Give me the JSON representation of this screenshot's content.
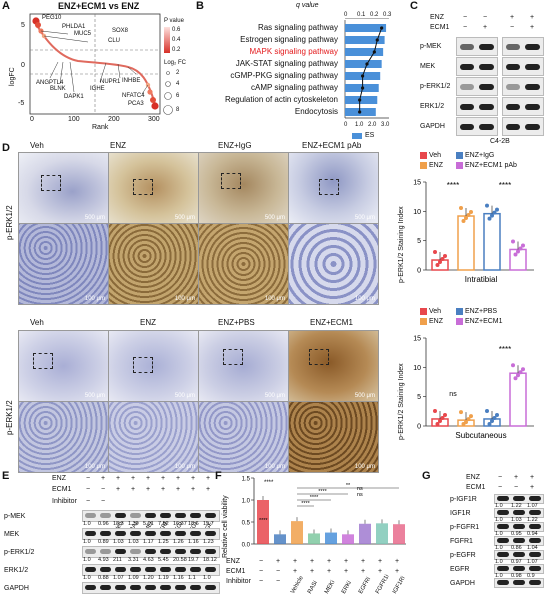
{
  "panels": {
    "A": "A",
    "B": "B",
    "C": "C",
    "D": "D",
    "E": "E",
    "F": "F",
    "G": "G"
  },
  "panelA": {
    "title": "ENZ+ECM1 vs ENZ",
    "ylabel": "logFC",
    "xlabel": "Rank",
    "legend_pvalue_title": "P value",
    "legend_pvalue_ticks": [
      "0.6",
      "0.4",
      "0.2"
    ],
    "legend_size_title": "Log₂ FC",
    "legend_size_ticks": [
      "2",
      "4",
      "6",
      "8"
    ],
    "genes_top": [
      "PEG10",
      "PHLDA1",
      "MUC5",
      "SOX8",
      "CLU"
    ],
    "genes_bottom": [
      "ANGPTL4",
      "BLNK",
      "DAPK1",
      "IGHE",
      "NUPR1",
      "NFATC4",
      "INHBE",
      "PCA3"
    ],
    "yticks": [
      "5",
      "0",
      "-5"
    ],
    "xticks": [
      "0",
      "100",
      "200",
      "300"
    ],
    "colors": {
      "high": "#d73027",
      "mid": "#f4a582",
      "low": "#fde0dd"
    }
  },
  "panelB": {
    "top_axis_title": "q value",
    "top_ticks": [
      "0",
      "0.1",
      "0.2",
      "0.3"
    ],
    "bottom_ticks": [
      "0",
      "1.0",
      "2.0",
      "3.0"
    ],
    "legend": "ES",
    "pathways": [
      "Ras signaling pathway",
      "Estrogen signaling pathway",
      "MAPK signaling pathway",
      "JAK-STAT signaling pathway",
      "cGMP-PKG signaling pathway",
      "cAMP signaling pathway",
      "Regulation of actin cytoskeleton",
      "Endocytosis"
    ],
    "highlight_color": "#e31a1c",
    "bar_color": "#4a90d9"
  },
  "chart_data": [
    {
      "type": "bar",
      "panel": "B",
      "categories": [
        "Ras signaling pathway",
        "Estrogen signaling pathway",
        "MAPK signaling pathway",
        "JAK-STAT signaling pathway",
        "cGMP-PKG signaling pathway",
        "cAMP signaling pathway",
        "Regulation of actin cytoskeleton",
        "Endocytosis"
      ],
      "series": [
        {
          "name": "ES",
          "values": [
            2.8,
            2.7,
            2.6,
            2.5,
            2.4,
            2.3,
            2.2,
            2.1
          ]
        },
        {
          "name": "q value",
          "values": [
            0.25,
            0.22,
            0.2,
            0.15,
            0.12,
            0.12,
            0.1,
            0.1
          ]
        }
      ],
      "xlim": [
        0,
        3.0
      ]
    },
    {
      "type": "bar",
      "panel": "D-intratibial",
      "categories": [
        "Veh",
        "ENZ",
        "ENZ+IgG",
        "ENZ+ECM1 pAb"
      ],
      "values": [
        1.7,
        9.2,
        9.6,
        3.5
      ],
      "ylabel": "p-ERK1/2 Staining Index",
      "xlabel": "Intratibial",
      "ylim": [
        0,
        15
      ],
      "yticks": [
        0,
        5,
        10,
        15
      ]
    },
    {
      "type": "bar",
      "panel": "D-subcutaneous",
      "categories": [
        "Veh",
        "ENZ",
        "ENZ+PBS",
        "ENZ+ECM1"
      ],
      "values": [
        1.2,
        1.0,
        1.2,
        9.0
      ],
      "ylabel": "p-ERK1/2 Staining Index",
      "xlabel": "Subcutaneous",
      "ylim": [
        0,
        15
      ],
      "yticks": [
        0,
        5,
        10,
        15
      ]
    },
    {
      "type": "bar",
      "panel": "F",
      "categories": [
        "-/-",
        "+/-",
        "Vehicle",
        "RASi",
        "MEKi",
        "ERKi",
        "EGFRi",
        "FGFR1i",
        "IGF1Ri"
      ],
      "values": [
        1.0,
        0.22,
        0.52,
        0.24,
        0.26,
        0.22,
        0.46,
        0.47,
        0.45
      ],
      "ylabel": "Relative cell viability",
      "ylim": [
        0,
        1.5
      ],
      "yticks": [
        0.0,
        0.5,
        1.0,
        1.5
      ]
    }
  ],
  "panelC": {
    "row_enz": "ENZ",
    "row_ecm1": "ECM1",
    "enz_signs": [
      "−",
      "−",
      "+",
      "+"
    ],
    "ecm1_signs": [
      "−",
      "+",
      "−",
      "+"
    ],
    "blots": [
      "p-MEK",
      "MEK",
      "p-ERK1/2",
      "ERK1/2",
      "GAPDH"
    ],
    "cell": "C4-2B"
  },
  "panelD": {
    "row_label": "p-ERK1/2",
    "top_groups": [
      "Veh",
      "ENZ",
      "ENZ+IgG",
      "ENZ+ECM1 pAb"
    ],
    "bottom_groups": [
      "Veh",
      "ENZ",
      "ENZ+PBS",
      "ENZ+ECM1"
    ],
    "scale_500": "500 μm",
    "scale_100": "100 μm",
    "legend_top": [
      "Veh",
      "ENZ",
      "ENZ+IgG",
      "ENZ+ECM1 pAb"
    ],
    "legend_bottom": [
      "Veh",
      "ENZ",
      "ENZ+PBS",
      "ENZ+ECM1"
    ],
    "sig_top": [
      "****",
      "****"
    ],
    "sig_bottom_ns": "ns",
    "sig_bottom": "****",
    "xlabel_top": "Intratibial",
    "xlabel_bottom": "Subcutaneous",
    "ylabel": "p-ERK1/2 Staining Index",
    "yticks": [
      "0",
      "5",
      "10",
      "15"
    ],
    "colors": {
      "veh": "#e8474c",
      "enz": "#f0a04b",
      "igg": "#4a7fc1",
      "pab": "#c86dd7"
    }
  },
  "panelE": {
    "enz": "ENZ",
    "ecm1": "ECM1",
    "inhibitor": "Inhibitor",
    "enz_signs": [
      "−",
      "+",
      "+",
      "+",
      "+",
      "+",
      "+",
      "+",
      "+"
    ],
    "ecm1_signs": [
      "−",
      "−",
      "+",
      "+",
      "+",
      "+",
      "+",
      "+",
      "+"
    ],
    "inhibitors": [
      "Vehicle",
      "RASi",
      "MEKi",
      "ERKi",
      "EGFRi",
      "FGFR1i",
      "IGF1Ri"
    ],
    "blots": [
      "p-MEK",
      "MEK",
      "p-ERK1/2",
      "ERK1/2",
      "GAPDH"
    ],
    "quant_pmek": [
      "1.0",
      "0.96",
      "18.3",
      "1.39",
      "5.01",
      "7.52",
      "16.37",
      "18.6",
      "15.7"
    ],
    "quant_perk": [
      "1.0",
      "4.93",
      "211",
      "3.31",
      "4.63",
      "5.45",
      "20.58",
      "19.7",
      "18.12"
    ],
    "quant_gapdh": [
      "1.0",
      "0.88",
      "1.07",
      "1.09",
      "1.20",
      "1.19",
      "1.16",
      "1.1",
      "1.0"
    ],
    "quant_mek": [
      "1.0",
      "0.89",
      "1.03",
      "1.03",
      "1.17",
      "1.25",
      "1.26",
      "1.16",
      "1.23"
    ],
    "quant_erk": [
      "1.0",
      "0.88",
      "1.07",
      "1.09",
      "1.20",
      "1.19",
      "1.16",
      "1.1",
      "1.0"
    ]
  },
  "panelF": {
    "ylabel": "Relative cell viability",
    "yticks": [
      "0.0",
      "0.5",
      "1.0",
      "1.5"
    ],
    "enz": "ENZ",
    "ecm1": "ECM1",
    "inhibitor": "Inhibitor",
    "enz_signs": [
      "−",
      "+",
      "+",
      "+",
      "+",
      "+",
      "+",
      "+",
      "+"
    ],
    "ecm1_signs": [
      "−",
      "−",
      "+",
      "+",
      "+",
      "+",
      "+",
      "+",
      "+"
    ],
    "inhibitors": [
      "Vehicle",
      "RASi",
      "MEKi",
      "ERKi",
      "EGFRi",
      "FGFR1i",
      "IGF1Ri"
    ],
    "sig": [
      "****",
      "****",
      "****",
      "****",
      "****",
      "ns",
      "ns",
      "**"
    ],
    "colors": [
      "#e8474c",
      "#4a7fc1",
      "#f0a04b",
      "#7ec8a0",
      "#4a90d9",
      "#c86dd7",
      "#a07ad0",
      "#7fc8b6",
      "#e86b8c"
    ]
  },
  "panelG": {
    "enz": "ENZ",
    "ecm1": "ECM1",
    "enz_signs": [
      "−",
      "+",
      "+"
    ],
    "ecm1_signs": [
      "−",
      "−",
      "+"
    ],
    "blots": [
      "p-IGF1R",
      "IGF1R",
      "p-FGFR1",
      "FGFR1",
      "p-EGFR",
      "EGFR",
      "GAPDH"
    ],
    "q1": [
      "1.0",
      "1.22",
      "1.07"
    ],
    "q2": [
      "1.0",
      "1.03",
      "1.22"
    ],
    "q3": [
      "1.0",
      "0.95",
      "0.94"
    ],
    "q4": [
      "1.0",
      "0.86",
      "1.04"
    ],
    "q5": [
      "1.0",
      "0.97",
      "1.07"
    ],
    "q6": [
      "1.0",
      "0.98",
      "0.9"
    ]
  }
}
